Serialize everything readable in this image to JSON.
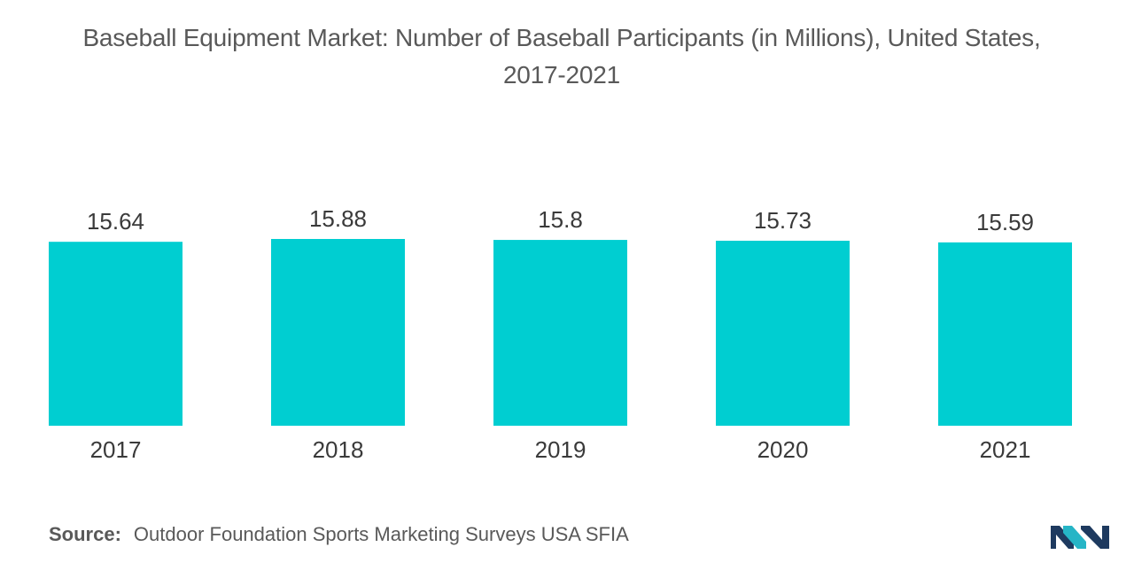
{
  "title": {
    "line1": "Baseball Equipment Market: Number of Baseball Participants (in Millions), United States,",
    "line2": "2017-2021"
  },
  "source": {
    "label": "Source:",
    "text": "Outdoor Foundation Sports Marketing Surveys USA SFIA"
  },
  "colors": {
    "bar": "#00ced1",
    "logo_dark": "#1e3a5f",
    "logo_accent": "#26b5c6"
  },
  "chart_data": {
    "type": "bar",
    "title": "Baseball Equipment Market: Number of Baseball Participants (in Millions), United States, 2017-2021",
    "categories": [
      "2017",
      "2018",
      "2019",
      "2020",
      "2021"
    ],
    "values": [
      15.64,
      15.88,
      15.8,
      15.73,
      15.59
    ],
    "value_labels": [
      "15.64",
      "15.88",
      "15.8",
      "15.73",
      "15.59"
    ],
    "xlabel": "",
    "ylabel": "",
    "ylim": [
      0,
      15.88
    ],
    "grid": false,
    "legend": "none"
  }
}
